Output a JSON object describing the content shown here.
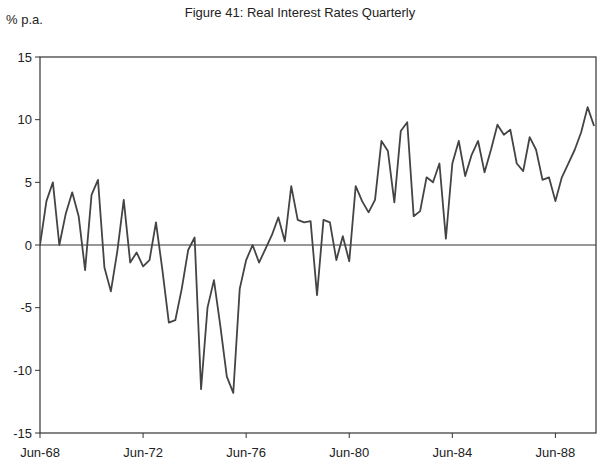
{
  "chart_data": {
    "type": "line",
    "title": "Figure 41: Real Interest Rates Quarterly",
    "y_label": "% p.a.",
    "categories": [
      "Jun-68",
      null,
      null,
      null,
      null,
      null,
      null,
      null,
      null,
      null,
      null,
      null,
      null,
      null,
      null,
      null,
      "Jun-72",
      null,
      null,
      null,
      null,
      null,
      null,
      null,
      null,
      null,
      null,
      null,
      null,
      null,
      null,
      null,
      "Jun-76",
      null,
      null,
      null,
      null,
      null,
      null,
      null,
      null,
      null,
      null,
      null,
      null,
      null,
      null,
      null,
      "Jun-80",
      null,
      null,
      null,
      null,
      null,
      null,
      null,
      null,
      null,
      null,
      null,
      null,
      null,
      null,
      null,
      "Jun-84",
      null,
      null,
      null,
      null,
      null,
      null,
      null,
      null,
      null,
      null,
      null,
      null,
      null,
      null,
      null,
      "Jun-88",
      null,
      null,
      null,
      null,
      null,
      null
    ],
    "series": [
      {
        "name": "Real Interest Rates",
        "color": "#444444",
        "values": [
          0,
          3.5,
          5,
          0,
          2.5,
          4.2,
          2.3,
          -2,
          4,
          5.2,
          -1.8,
          -3.7,
          -0.5,
          3.6,
          -1.4,
          -0.6,
          -1.7,
          -1.2,
          1.8,
          -2,
          -6.2,
          -6,
          -3.5,
          -0.4,
          0.6,
          -11.5,
          -5,
          -2.8,
          -6.5,
          -10.5,
          -11.8,
          -3.5,
          -1.2,
          0,
          -1.4,
          -0.3,
          0.8,
          2.2,
          0.3,
          4.7,
          2,
          1.8,
          1.9,
          -4,
          2,
          1.8,
          -1.2,
          0.7,
          -1.3,
          4.7,
          3.5,
          2.6,
          3.6,
          8.3,
          7.5,
          3.4,
          9.1,
          9.8,
          2.3,
          2.7,
          5.4,
          5,
          6.5,
          0.5,
          6.5,
          8.3,
          5.5,
          7.2,
          8.3,
          5.8,
          7.6,
          9.6,
          8.8,
          9.2,
          6.5,
          5.9,
          8.6,
          7.6,
          5.2,
          5.4,
          3.5,
          5.4,
          6.5,
          7.6,
          9,
          11,
          9.5
        ]
      }
    ],
    "ylim": [
      -15,
      15
    ],
    "yticks": [
      -15,
      -10,
      -5,
      0,
      5,
      10,
      15
    ],
    "grid": false
  }
}
